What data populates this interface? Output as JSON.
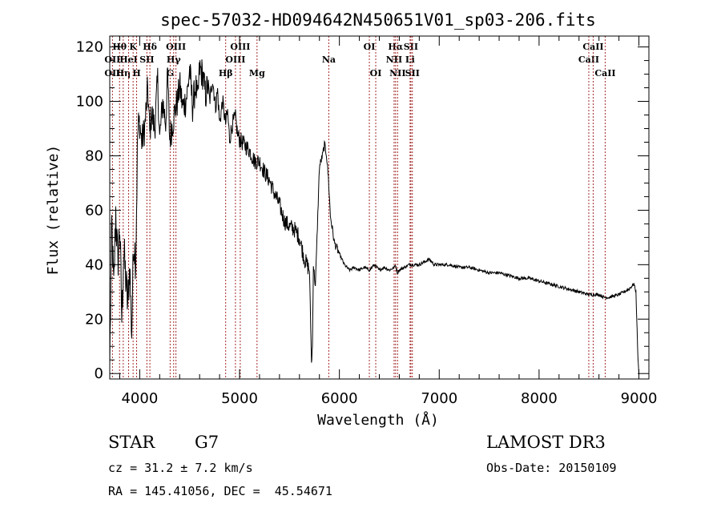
{
  "chart_data": {
    "type": "line",
    "title": "spec-57032-HD094642N450651V01_sp03-206.fits",
    "xlabel": "Wavelength (Å)",
    "ylabel": "Flux (relative)",
    "xlim": [
      3700,
      9100
    ],
    "ylim": [
      -2,
      124
    ],
    "x_ticks": [
      4000,
      5000,
      6000,
      7000,
      8000,
      9000
    ],
    "x_tick_labels": [
      "4000",
      "5000",
      "6000",
      "7000",
      "8000",
      "9000"
    ],
    "y_ticks": [
      0,
      20,
      40,
      60,
      80,
      100,
      120
    ],
    "y_tick_labels": [
      "0",
      "20",
      "40",
      "60",
      "80",
      "100",
      "120"
    ],
    "series": [
      {
        "name": "flux",
        "x": [
          3700,
          3720,
          3740,
          3760,
          3780,
          3800,
          3820,
          3840,
          3860,
          3880,
          3900,
          3920,
          3940,
          3960,
          3980,
          4000,
          4020,
          4050,
          4080,
          4100,
          4120,
          4150,
          4180,
          4200,
          4230,
          4260,
          4280,
          4300,
          4330,
          4360,
          4380,
          4400,
          4430,
          4460,
          4480,
          4500,
          4530,
          4560,
          4580,
          4600,
          4630,
          4660,
          4680,
          4700,
          4730,
          4760,
          4780,
          4800,
          4830,
          4860,
          4880,
          4900,
          4930,
          4960,
          4980,
          5000,
          5050,
          5100,
          5150,
          5200,
          5250,
          5300,
          5350,
          5400,
          5450,
          5500,
          5550,
          5600,
          5650,
          5700,
          5720,
          5730,
          5740,
          5760,
          5800,
          5830,
          5850,
          5870,
          5890,
          5910,
          5950,
          6000,
          6050,
          6100,
          6150,
          6200,
          6250,
          6300,
          6350,
          6400,
          6450,
          6500,
          6550,
          6563,
          6580,
          6600,
          6650,
          6700,
          6750,
          6800,
          6850,
          6900,
          6950,
          7000,
          7100,
          7200,
          7300,
          7400,
          7500,
          7600,
          7700,
          7800,
          7900,
          8000,
          8100,
          8200,
          8300,
          8400,
          8500,
          8600,
          8650,
          8700,
          8800,
          8900,
          8950,
          8970,
          8990,
          9000
        ],
        "y": [
          3,
          55,
          30,
          60,
          40,
          55,
          20,
          45,
          35,
          25,
          40,
          15,
          50,
          42,
          88,
          92,
          85,
          90,
          105,
          88,
          96,
          90,
          108,
          86,
          100,
          92,
          110,
          86,
          92,
          98,
          100,
          106,
          98,
          100,
          104,
          112,
          98,
          106,
          100,
          112,
          110,
          102,
          106,
          100,
          108,
          98,
          104,
          92,
          100,
          92,
          96,
          86,
          92,
          94,
          88,
          86,
          84,
          82,
          78,
          78,
          74,
          71,
          66,
          62,
          56,
          54,
          53,
          50,
          42,
          38,
          4,
          10,
          40,
          32,
          76,
          80,
          84,
          81,
          72,
          58,
          48,
          44,
          40,
          38,
          39,
          38,
          39,
          38,
          40,
          38,
          39,
          38,
          39,
          40,
          37,
          38,
          39,
          40,
          40,
          40,
          41,
          42,
          40,
          40,
          40,
          39,
          39,
          38,
          37,
          37,
          36,
          35,
          35,
          34,
          33,
          32,
          31,
          30,
          29,
          29,
          28,
          28,
          29,
          31,
          33,
          30,
          6,
          0
        ]
      }
    ],
    "lines": [
      {
        "name": "Hθ",
        "wave": 3798,
        "row": 1
      },
      {
        "name": "OII",
        "wave": 3727,
        "row": 2
      },
      {
        "name": "OII",
        "wave": 3727,
        "row": 3
      },
      {
        "name": "Hη",
        "wave": 3835,
        "row": 3
      },
      {
        "name": "K",
        "wave": 3934,
        "row": 1
      },
      {
        "name": "HeI",
        "wave": 3889,
        "row": 2
      },
      {
        "name": "H",
        "wave": 3969,
        "row": 3
      },
      {
        "name": "SII",
        "wave": 4072,
        "row": 2
      },
      {
        "name": "Hδ",
        "wave": 4102,
        "row": 1
      },
      {
        "name": "OIII",
        "wave": 4363,
        "row": 1
      },
      {
        "name": "Hγ",
        "wave": 4340,
        "row": 2
      },
      {
        "name": "G",
        "wave": 4305,
        "row": 3
      },
      {
        "name": "Hβ",
        "wave": 4861,
        "row": 3
      },
      {
        "name": "OIII",
        "wave": 4959,
        "row": 2
      },
      {
        "name": "OIII",
        "wave": 5007,
        "row": 1
      },
      {
        "name": "Mg",
        "wave": 5175,
        "row": 3
      },
      {
        "name": "Na",
        "wave": 5894,
        "row": 2
      },
      {
        "name": "OI",
        "wave": 6300,
        "row": 1
      },
      {
        "name": "OI",
        "wave": 6364,
        "row": 3
      },
      {
        "name": "Hα",
        "wave": 6563,
        "row": 1
      },
      {
        "name": "NII",
        "wave": 6548,
        "row": 2
      },
      {
        "name": "NII",
        "wave": 6583,
        "row": 3
      },
      {
        "name": "SII",
        "wave": 6716,
        "row": 1
      },
      {
        "name": "Li",
        "wave": 6708,
        "row": 2
      },
      {
        "name": "SII",
        "wave": 6731,
        "row": 3
      },
      {
        "name": "CaII",
        "wave": 8498,
        "row": 2
      },
      {
        "name": "CaII",
        "wave": 8542,
        "row": 1
      },
      {
        "name": "CaII",
        "wave": 8662,
        "row": 3
      }
    ]
  },
  "info": {
    "object_class": "STAR",
    "subclass": "G7",
    "cz": "cz = 31.2 ± 7.2 km/s",
    "radec": "RA = 145.41056, DEC =  45.54671",
    "survey": "LAMOST DR3",
    "obs_date": "Obs-Date: 20150109"
  },
  "colors": {
    "line_marker": "#a52a2a",
    "spectrum": "#000000"
  }
}
